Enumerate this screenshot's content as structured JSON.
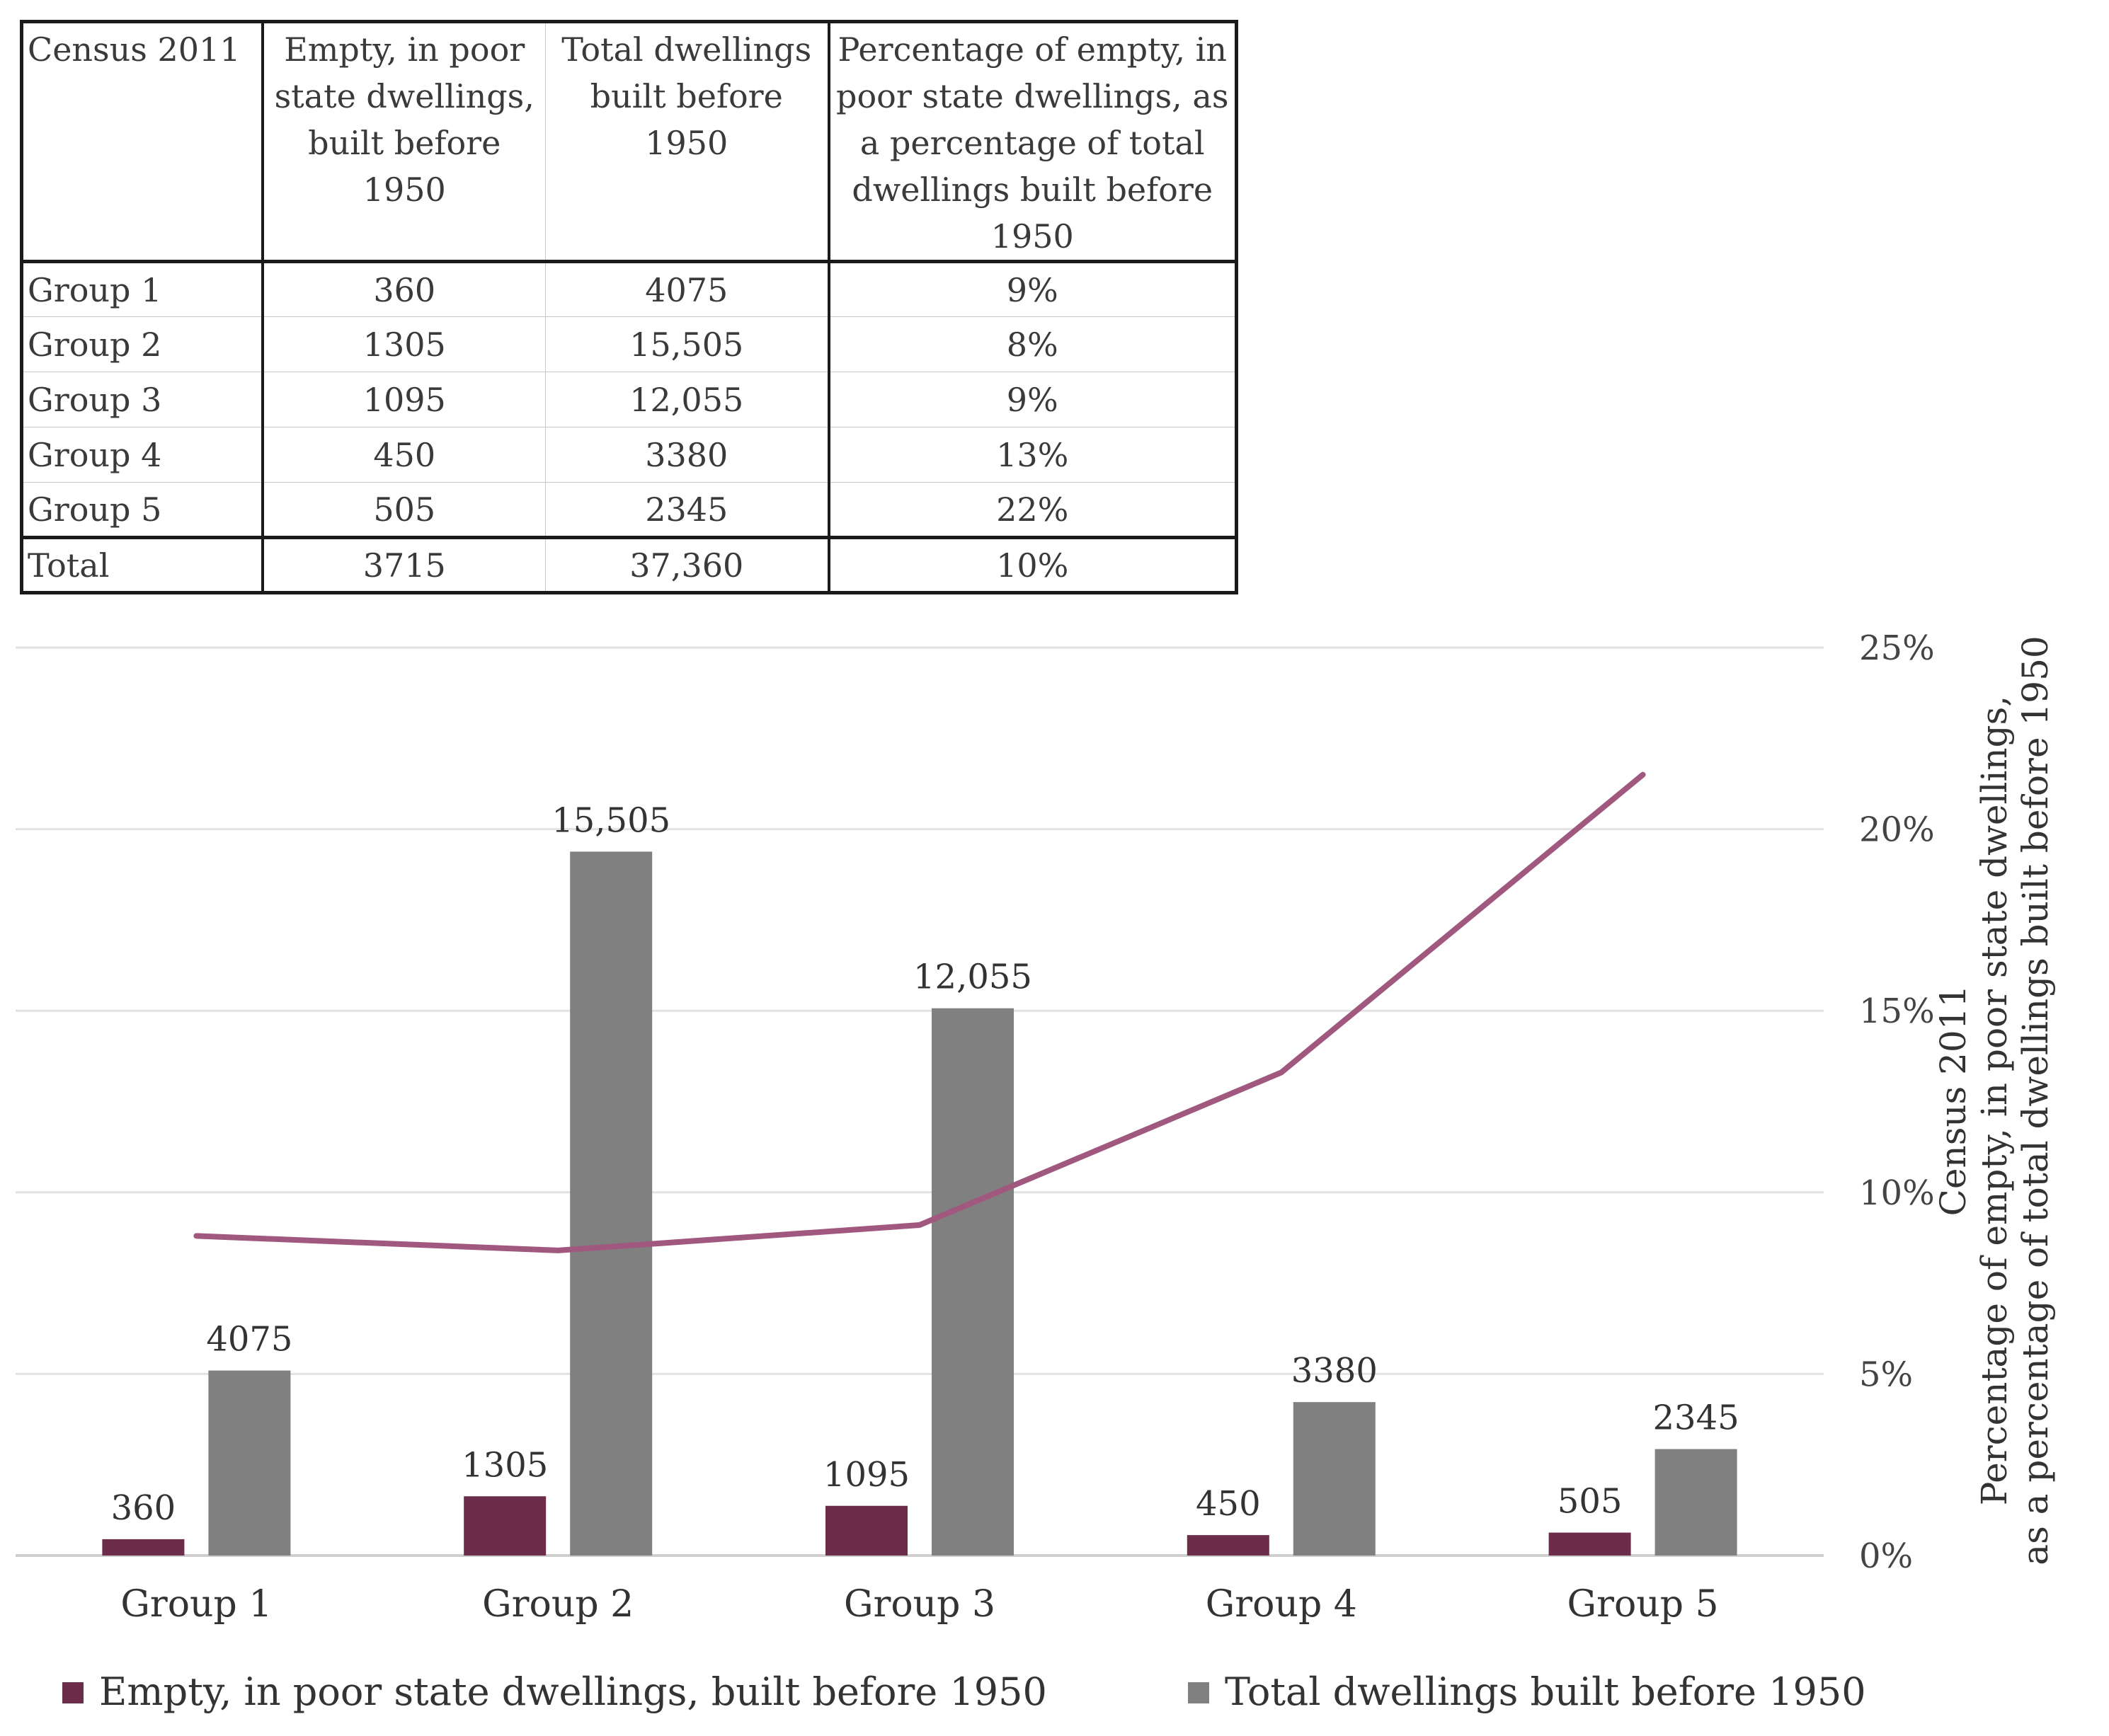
{
  "table": {
    "headers": [
      "Census 2011",
      "Empty, in poor state dwellings, built before 1950",
      "Total dwellings built before 1950",
      "Percentage of empty, in poor state dwellings, as a percentage of total dwellings built before 1950"
    ],
    "rows": [
      [
        "Group 1",
        "360",
        "4075",
        "9%"
      ],
      [
        "Group 2",
        "1305",
        "15,505",
        "8%"
      ],
      [
        "Group 3",
        "1095",
        "12,055",
        "9%"
      ],
      [
        "Group 4",
        "450",
        "3380",
        "13%"
      ],
      [
        "Group 5",
        "505",
        "2345",
        "22%"
      ]
    ],
    "total": [
      "Total",
      "3715",
      "37,360",
      "10%"
    ]
  },
  "chart_data": {
    "type": "bar",
    "categories": [
      "Group 1",
      "Group 2",
      "Group 3",
      "Group 4",
      "Group 5"
    ],
    "series": [
      {
        "name": "Empty, in poor state dwellings, built before 1950",
        "type": "bar",
        "values": [
          360,
          1305,
          1095,
          450,
          505
        ],
        "labels": [
          "360",
          "1305",
          "1095",
          "450",
          "505"
        ],
        "color": "#6b2d4a"
      },
      {
        "name": "Total dwellings built before 1950",
        "type": "bar",
        "values": [
          4075,
          15505,
          12055,
          3380,
          2345
        ],
        "labels": [
          "4075",
          "15,505",
          "12,055",
          "3380",
          "2345"
        ],
        "color": "#808080"
      },
      {
        "name": "Percentage of empty, in poor state dwellings, as a percentage of total dwellings built before 1950",
        "type": "line",
        "axis": "right",
        "values": [
          8.8,
          8.4,
          9.1,
          13.3,
          21.5
        ],
        "color": "#a0587f"
      }
    ],
    "bar_axis_max": 20000,
    "right_axis": {
      "ylim": [
        0,
        25
      ],
      "ticks": [
        "0%",
        "5%",
        "10%",
        "15%",
        "20%",
        "25%"
      ],
      "label_lines": [
        "Census 2011",
        "Percentage of empty, in poor state dwellings,",
        "as a percentage of total dwellings built before 1950"
      ]
    },
    "grid": true,
    "legend_position": "bottom",
    "legend": [
      {
        "label": "Empty, in poor state dwellings, built before 1950",
        "color": "#6b2d4a"
      },
      {
        "label": "Total dwellings built before 1950",
        "color": "#808080"
      }
    ]
  }
}
